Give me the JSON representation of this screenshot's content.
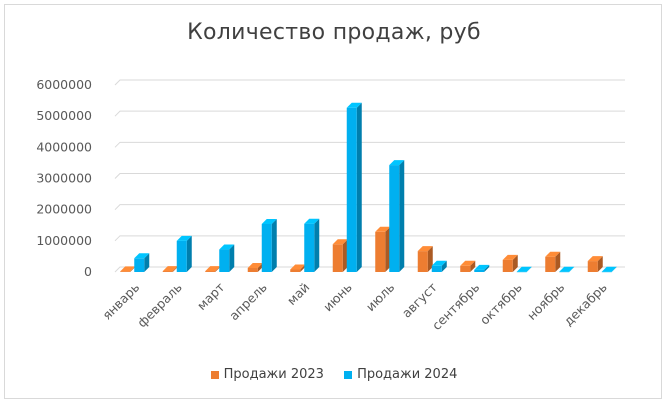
{
  "chart_data": {
    "type": "bar",
    "title": "Количество продаж, руб",
    "categories": [
      "январь",
      "февраль",
      "март",
      "апрель",
      "май",
      "июнь",
      "июль",
      "август",
      "сентябрь",
      "октябрь",
      "ноябрь",
      "декабрь"
    ],
    "series": [
      {
        "name": "Продажи 2023",
        "color": "#ED7D31",
        "values": [
          20000,
          30000,
          30000,
          130000,
          80000,
          890000,
          1290000,
          670000,
          200000,
          390000,
          490000,
          350000
        ]
      },
      {
        "name": "Продажи 2024",
        "color": "#00B0F0",
        "values": [
          440000,
          1000000,
          720000,
          1540000,
          1550000,
          5270000,
          3430000,
          200000,
          70000,
          10000,
          10000,
          10000
        ]
      }
    ],
    "yticks": [
      "0",
      "1000000",
      "2000000",
      "3000000",
      "4000000",
      "5000000",
      "6000000"
    ],
    "ylim": [
      0,
      6000000
    ],
    "grid": true,
    "legend_position": "bottom",
    "style": "3d-columns"
  }
}
